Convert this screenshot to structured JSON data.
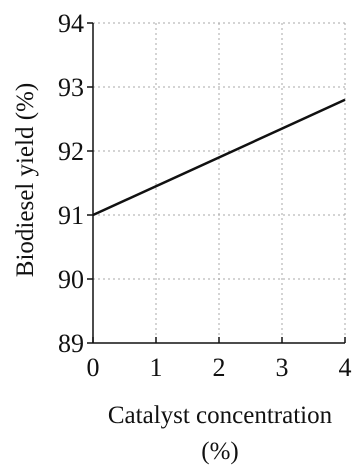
{
  "chart_data": {
    "type": "line",
    "xlabel_line1": "Catalyst concentration",
    "xlabel_line2": "(%)",
    "ylabel": "Biodiesel yield (%)",
    "xlim": [
      0,
      4
    ],
    "ylim": [
      89,
      94
    ],
    "xticks": [
      0,
      1,
      2,
      3,
      4
    ],
    "yticks": [
      89,
      90,
      91,
      92,
      93,
      94
    ],
    "grid": true,
    "series": [
      {
        "x": [
          0,
          4
        ],
        "y": [
          91.0,
          92.8
        ]
      }
    ]
  },
  "style": {
    "line_color": "#111111",
    "grid_color": "#a9a9a9",
    "axis_color": "#111111"
  }
}
